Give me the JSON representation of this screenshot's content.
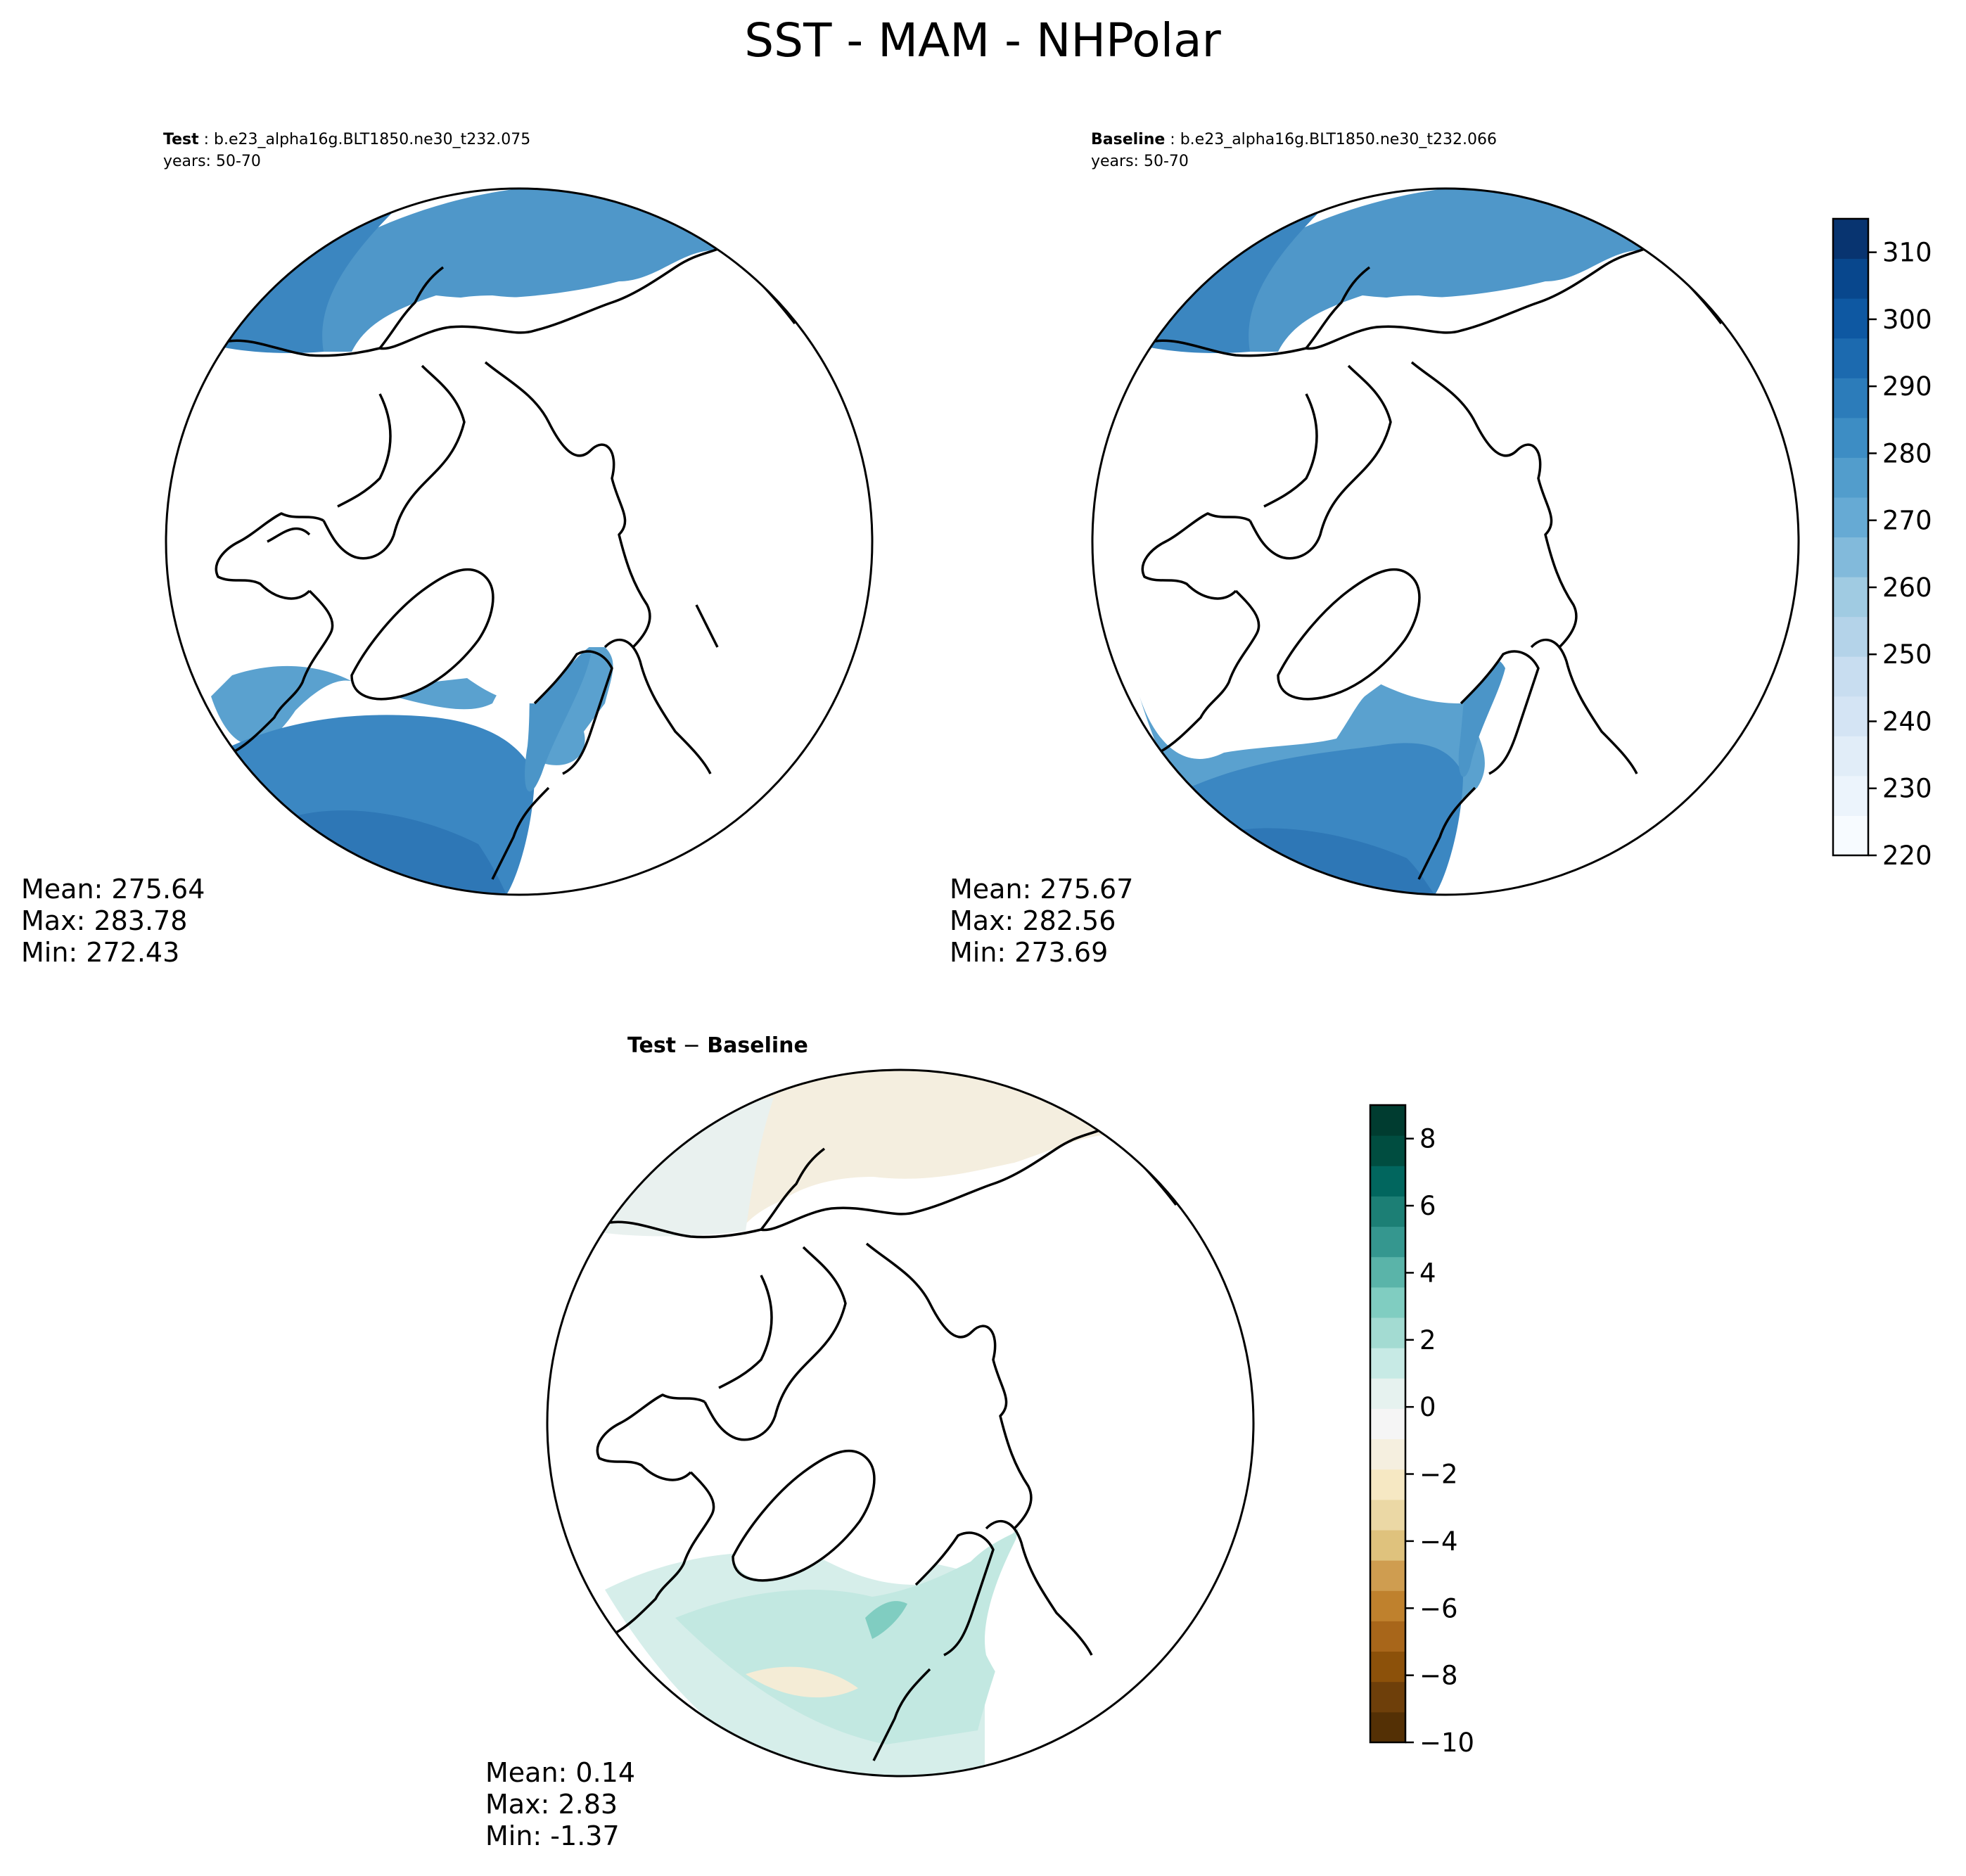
{
  "figure": {
    "title": "SST - MAM - NHPolar"
  },
  "panels": [
    {
      "id": "test",
      "label_bold": "Test",
      "label_sep": " : ",
      "case": "b.e23_alpha16g.BLT1850.ne30_t232.075",
      "years": "years: 50-70",
      "stats": [
        "Mean: 275.64",
        "Max: 283.78",
        "Min: 272.43"
      ]
    },
    {
      "id": "baseline",
      "label_bold": "Baseline",
      "label_sep": " : ",
      "case": "b.e23_alpha16g.BLT1850.ne30_t232.066",
      "years": "years: 50-70",
      "stats": [
        "Mean: 275.67",
        "Max: 282.56",
        "Min: 273.69"
      ]
    },
    {
      "id": "diff",
      "label_bold": "Test",
      "label_sep": " − ",
      "label_bold2": "Baseline",
      "stats": [
        "Mean:  0.14",
        "Max:  2.83",
        "Min: -1.37"
      ]
    }
  ],
  "colorbars": {
    "absolute": {
      "ticks": [
        "220",
        "230",
        "240",
        "250",
        "260",
        "270",
        "280",
        "290",
        "300",
        "310"
      ],
      "min": 220,
      "max": 315,
      "step": 5,
      "colors": [
        "#f7fbff",
        "#ecf4fc",
        "#e1edf8",
        "#d4e4f4",
        "#c8ddf0",
        "#b4d3e9",
        "#a0cbe2",
        "#82badb",
        "#66aad4",
        "#529dcc",
        "#3d8dc4",
        "#2c7cba",
        "#1c6aaf",
        "#0e58a2",
        "#08478d",
        "#083470"
      ]
    },
    "difference": {
      "ticks": [
        "−10",
        "−8",
        "−6",
        "−4",
        "−2",
        "0",
        "2",
        "4",
        "6",
        "8"
      ],
      "min": -10,
      "max": 9,
      "step": 1,
      "colors": [
        "#543005",
        "#6e3f0a",
        "#8c510a",
        "#a8661a",
        "#bf812d",
        "#cf9d50",
        "#dfc27d",
        "#ebd8a5",
        "#f6e8c3",
        "#f5efdf",
        "#f5f5f5",
        "#e6f2ef",
        "#c7eae5",
        "#a3dbd2",
        "#80cdc1",
        "#5ab4a9",
        "#35978f",
        "#1c7f75",
        "#01665e",
        "#004d40",
        "#003c30"
      ]
    }
  },
  "map_colors": {
    "land_fill": "#ffffff",
    "coastline": "#000000"
  }
}
